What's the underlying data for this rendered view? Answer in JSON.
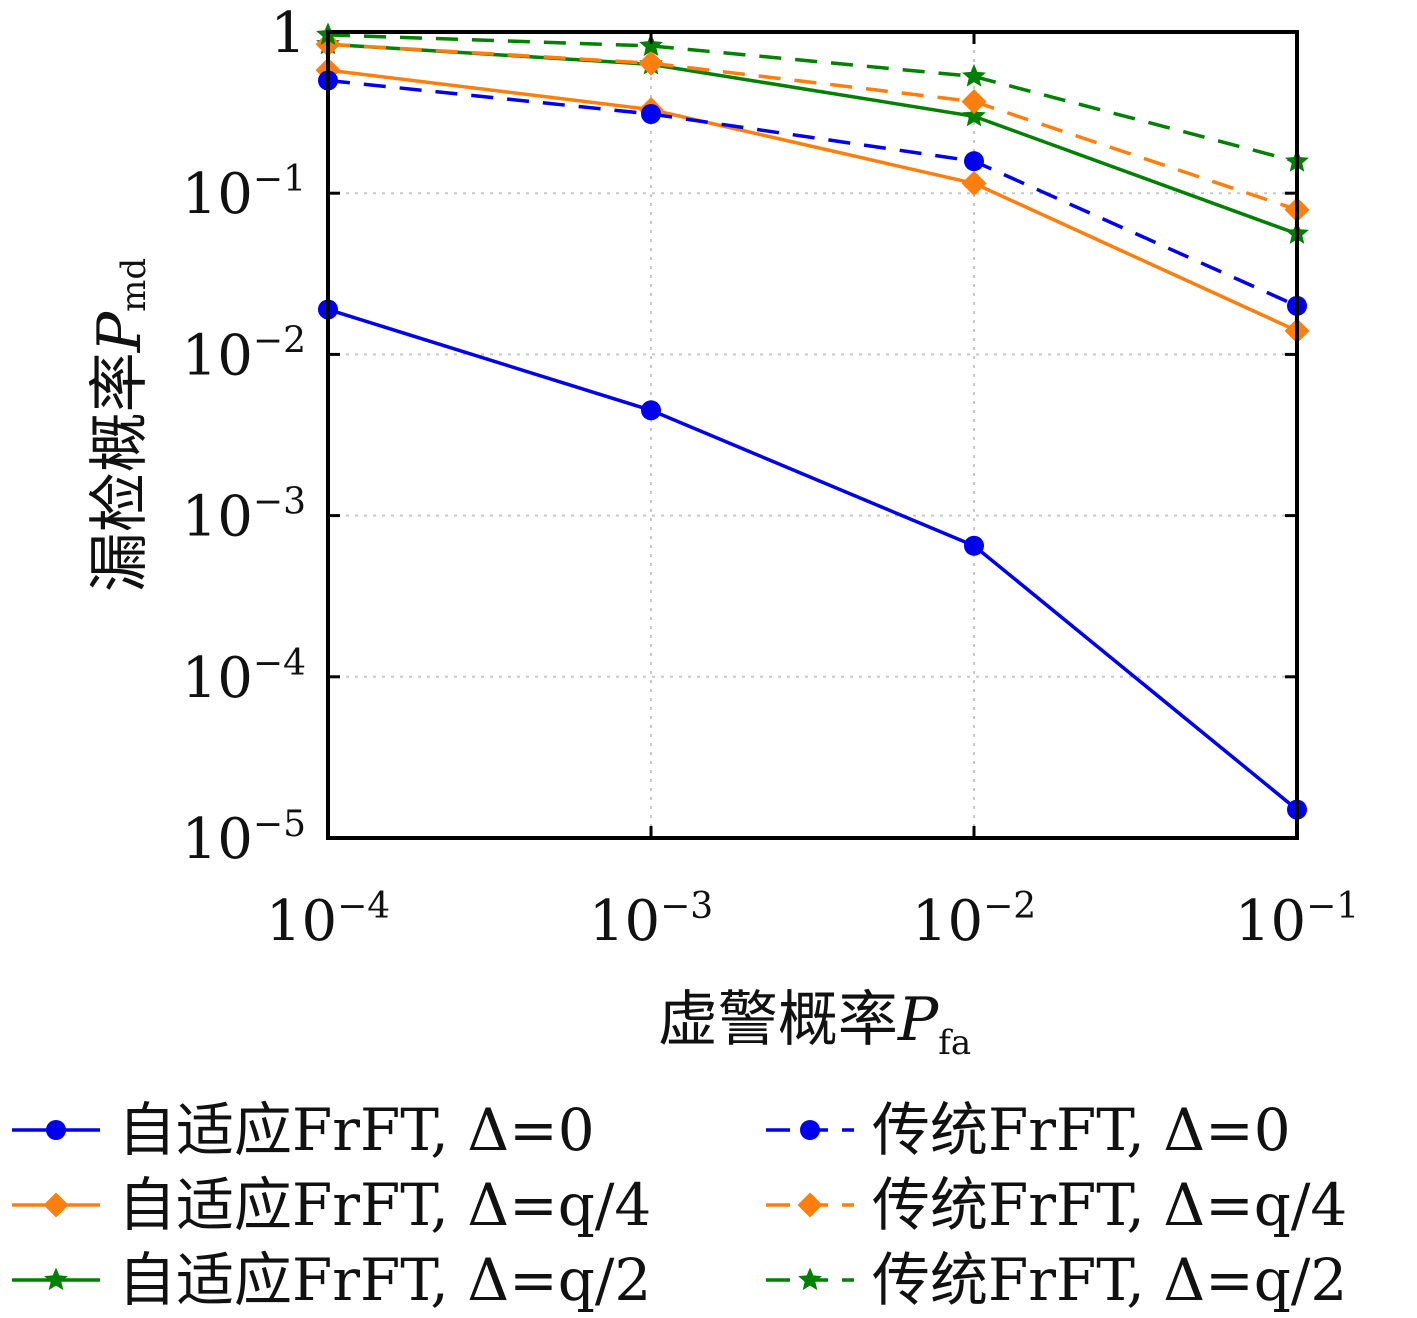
{
  "chart_data": {
    "type": "line",
    "xscale": "log",
    "yscale": "log",
    "x": [
      0.0001,
      0.001,
      0.01,
      0.1
    ],
    "xlim": [
      0.0001,
      0.1
    ],
    "ylim": [
      1e-05,
      1
    ],
    "xticks": [
      {
        "value": 0.0001,
        "base": "10",
        "exp": "−4"
      },
      {
        "value": 0.001,
        "base": "10",
        "exp": "−3"
      },
      {
        "value": 0.01,
        "base": "10",
        "exp": "−2"
      },
      {
        "value": 0.1,
        "base": "10",
        "exp": "−1"
      }
    ],
    "yticks": [
      {
        "value": 1,
        "base": "1",
        "exp": ""
      },
      {
        "value": 0.1,
        "base": "10",
        "exp": "−1"
      },
      {
        "value": 0.01,
        "base": "10",
        "exp": "−2"
      },
      {
        "value": 0.001,
        "base": "10",
        "exp": "−3"
      },
      {
        "value": 0.0001,
        "base": "10",
        "exp": "−4"
      },
      {
        "value": 1e-05,
        "base": "10",
        "exp": "−5"
      }
    ],
    "xlabel": {
      "text": "虚警概率",
      "symbol": "P",
      "sub": "fa"
    },
    "ylabel": {
      "text": "漏检概率",
      "symbol": "P",
      "sub": "md"
    },
    "grid": true,
    "legend_position": "bottom",
    "series": [
      {
        "name": "自适应FrFT, Δ=0",
        "color": "#0000ee",
        "dash": false,
        "marker": "circle",
        "values": [
          0.019,
          0.0045,
          0.00065,
          1.5e-05
        ]
      },
      {
        "name": "自适应FrFT, Δ=q/4",
        "color": "#ff7f0e",
        "dash": false,
        "marker": "diamond",
        "values": [
          0.58,
          0.33,
          0.115,
          0.014
        ]
      },
      {
        "name": "自适应FrFT, Δ=q/2",
        "color": "#008000",
        "dash": false,
        "marker": "star",
        "values": [
          0.84,
          0.63,
          0.3,
          0.056
        ]
      },
      {
        "name": "传统FrFT, Δ=0",
        "color": "#0000ee",
        "dash": true,
        "marker": "circle",
        "values": [
          0.5,
          0.31,
          0.158,
          0.02
        ]
      },
      {
        "name": "传统FrFT, Δ=q/4",
        "color": "#ff7f0e",
        "dash": true,
        "marker": "diamond",
        "values": [
          0.84,
          0.64,
          0.37,
          0.079
        ]
      },
      {
        "name": "传统FrFT, Δ=q/2",
        "color": "#008000",
        "dash": true,
        "marker": "star",
        "values": [
          0.96,
          0.82,
          0.53,
          0.157
        ]
      }
    ]
  }
}
